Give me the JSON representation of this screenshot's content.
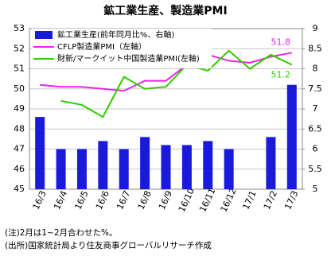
{
  "chart_data": {
    "type": "combo",
    "title": "鉱工業生産、製造業PMI",
    "categories": [
      "16/3",
      "16/4",
      "16/5",
      "16/6",
      "16/7",
      "16/8",
      "16/9",
      "16/10",
      "16/11",
      "16/12",
      "17/1",
      "17/2",
      "17/3"
    ],
    "series": [
      {
        "name": "鉱工業生産(前年同月比%、右軸)",
        "type": "bar",
        "axis": "y2",
        "color": "#1a1adb",
        "values": [
          6.8,
          6.0,
          6.0,
          6.2,
          6.0,
          6.3,
          6.1,
          6.1,
          6.2,
          6.0,
          null,
          6.3,
          7.6
        ]
      },
      {
        "name": "CFLP製造業PMI（左軸）",
        "type": "line",
        "color": "#ee22ee",
        "values": [
          50.2,
          50.1,
          50.1,
          50.0,
          49.9,
          50.4,
          50.4,
          51.2,
          51.7,
          51.4,
          51.3,
          51.6,
          51.8
        ]
      },
      {
        "name": "財新/マークイット中国製造業PMI(左軸)",
        "type": "line",
        "color": "#33cc00",
        "values": [
          null,
          49.4,
          49.2,
          48.6,
          50.6,
          50.0,
          50.1,
          51.2,
          50.9,
          51.9,
          51.0,
          51.7,
          51.2
        ]
      }
    ],
    "ylim": [
      45,
      53
    ],
    "yticks": [
      45,
      46,
      47,
      48,
      49,
      50,
      51,
      52,
      53
    ],
    "y2lim": [
      5,
      9
    ],
    "y2ticks": [
      5,
      5.5,
      6,
      6.5,
      7,
      7.5,
      8,
      8.5,
      9
    ],
    "grid": true,
    "legend": "top-left",
    "notes": [
      "(注)2月は1~2月合わせた%。",
      "(出所)国家統計局より住友商事グローバルリサーチ作成"
    ]
  }
}
